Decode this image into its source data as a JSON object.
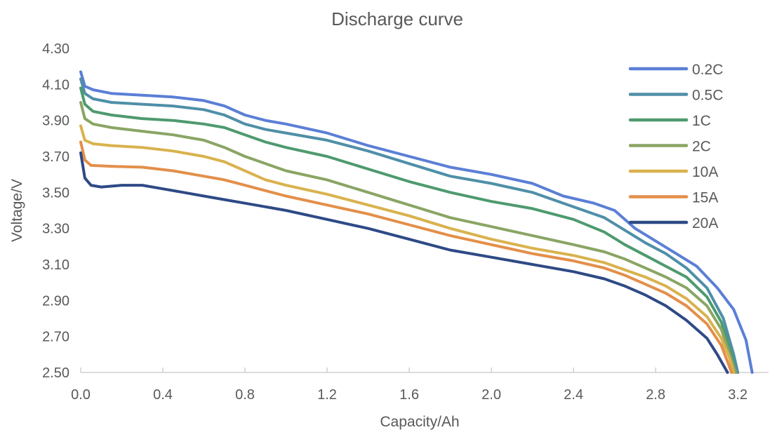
{
  "chart_data": {
    "type": "line",
    "title": "Discharge curve",
    "xlabel": "Capacity/Ah",
    "ylabel": "Voltage/V",
    "xlim": [
      0.0,
      3.35
    ],
    "ylim": [
      2.5,
      4.3
    ],
    "x_ticks": [
      "0.0",
      "0.4",
      "0.8",
      "1.2",
      "1.6",
      "2.0",
      "2.4",
      "2.8",
      "3.2"
    ],
    "y_ticks": [
      "2.50",
      "2.70",
      "2.90",
      "3.10",
      "3.30",
      "3.50",
      "3.70",
      "3.90",
      "4.10",
      "4.30"
    ],
    "grid": false,
    "legend_position": "top-right",
    "series": [
      {
        "name": "0.2C",
        "color": "#5B7FD6",
        "points": [
          [
            0.0,
            4.17
          ],
          [
            0.02,
            4.09
          ],
          [
            0.06,
            4.07
          ],
          [
            0.15,
            4.05
          ],
          [
            0.3,
            4.04
          ],
          [
            0.45,
            4.03
          ],
          [
            0.6,
            4.01
          ],
          [
            0.7,
            3.98
          ],
          [
            0.8,
            3.93
          ],
          [
            0.9,
            3.9
          ],
          [
            1.0,
            3.88
          ],
          [
            1.2,
            3.83
          ],
          [
            1.4,
            3.76
          ],
          [
            1.6,
            3.7
          ],
          [
            1.8,
            3.64
          ],
          [
            2.0,
            3.6
          ],
          [
            2.2,
            3.55
          ],
          [
            2.35,
            3.48
          ],
          [
            2.5,
            3.44
          ],
          [
            2.6,
            3.4
          ],
          [
            2.7,
            3.3
          ],
          [
            2.8,
            3.23
          ],
          [
            2.9,
            3.16
          ],
          [
            3.0,
            3.09
          ],
          [
            3.1,
            2.97
          ],
          [
            3.18,
            2.85
          ],
          [
            3.24,
            2.68
          ],
          [
            3.27,
            2.5
          ]
        ]
      },
      {
        "name": "0.5C",
        "color": "#4F8FA8",
        "points": [
          [
            0.0,
            4.13
          ],
          [
            0.02,
            4.05
          ],
          [
            0.06,
            4.02
          ],
          [
            0.15,
            4.0
          ],
          [
            0.3,
            3.99
          ],
          [
            0.45,
            3.98
          ],
          [
            0.6,
            3.96
          ],
          [
            0.7,
            3.93
          ],
          [
            0.8,
            3.88
          ],
          [
            0.9,
            3.85
          ],
          [
            1.0,
            3.83
          ],
          [
            1.2,
            3.79
          ],
          [
            1.4,
            3.73
          ],
          [
            1.6,
            3.66
          ],
          [
            1.8,
            3.59
          ],
          [
            2.0,
            3.55
          ],
          [
            2.2,
            3.5
          ],
          [
            2.4,
            3.42
          ],
          [
            2.55,
            3.36
          ],
          [
            2.65,
            3.29
          ],
          [
            2.75,
            3.22
          ],
          [
            2.85,
            3.16
          ],
          [
            2.95,
            3.08
          ],
          [
            3.05,
            2.97
          ],
          [
            3.13,
            2.8
          ],
          [
            3.18,
            2.6
          ],
          [
            3.2,
            2.5
          ]
        ]
      },
      {
        "name": "1C",
        "color": "#4E9A6E",
        "points": [
          [
            0.0,
            4.08
          ],
          [
            0.02,
            3.99
          ],
          [
            0.06,
            3.95
          ],
          [
            0.15,
            3.93
          ],
          [
            0.3,
            3.91
          ],
          [
            0.45,
            3.9
          ],
          [
            0.6,
            3.88
          ],
          [
            0.7,
            3.86
          ],
          [
            0.8,
            3.82
          ],
          [
            0.9,
            3.78
          ],
          [
            1.0,
            3.75
          ],
          [
            1.2,
            3.7
          ],
          [
            1.4,
            3.63
          ],
          [
            1.6,
            3.56
          ],
          [
            1.8,
            3.5
          ],
          [
            2.0,
            3.45
          ],
          [
            2.2,
            3.41
          ],
          [
            2.4,
            3.35
          ],
          [
            2.55,
            3.28
          ],
          [
            2.65,
            3.21
          ],
          [
            2.75,
            3.15
          ],
          [
            2.85,
            3.09
          ],
          [
            2.95,
            3.03
          ],
          [
            3.05,
            2.92
          ],
          [
            3.12,
            2.78
          ],
          [
            3.17,
            2.6
          ],
          [
            3.19,
            2.5
          ]
        ]
      },
      {
        "name": "2C",
        "color": "#8AA564",
        "points": [
          [
            0.0,
            4.0
          ],
          [
            0.02,
            3.91
          ],
          [
            0.06,
            3.88
          ],
          [
            0.15,
            3.86
          ],
          [
            0.3,
            3.84
          ],
          [
            0.45,
            3.82
          ],
          [
            0.6,
            3.79
          ],
          [
            0.7,
            3.75
          ],
          [
            0.8,
            3.7
          ],
          [
            0.9,
            3.66
          ],
          [
            1.0,
            3.62
          ],
          [
            1.2,
            3.57
          ],
          [
            1.4,
            3.5
          ],
          [
            1.6,
            3.43
          ],
          [
            1.8,
            3.36
          ],
          [
            2.0,
            3.31
          ],
          [
            2.2,
            3.26
          ],
          [
            2.4,
            3.21
          ],
          [
            2.55,
            3.17
          ],
          [
            2.65,
            3.13
          ],
          [
            2.75,
            3.08
          ],
          [
            2.85,
            3.03
          ],
          [
            2.95,
            2.97
          ],
          [
            3.05,
            2.87
          ],
          [
            3.12,
            2.74
          ],
          [
            3.16,
            2.6
          ],
          [
            3.19,
            2.5
          ]
        ]
      },
      {
        "name": "10A",
        "color": "#D9B24E",
        "points": [
          [
            0.0,
            3.87
          ],
          [
            0.02,
            3.79
          ],
          [
            0.06,
            3.77
          ],
          [
            0.15,
            3.76
          ],
          [
            0.3,
            3.75
          ],
          [
            0.45,
            3.73
          ],
          [
            0.6,
            3.7
          ],
          [
            0.7,
            3.67
          ],
          [
            0.8,
            3.62
          ],
          [
            0.9,
            3.57
          ],
          [
            1.0,
            3.54
          ],
          [
            1.2,
            3.49
          ],
          [
            1.4,
            3.43
          ],
          [
            1.6,
            3.37
          ],
          [
            1.8,
            3.3
          ],
          [
            2.0,
            3.24
          ],
          [
            2.2,
            3.19
          ],
          [
            2.4,
            3.15
          ],
          [
            2.55,
            3.11
          ],
          [
            2.65,
            3.07
          ],
          [
            2.75,
            3.03
          ],
          [
            2.85,
            2.98
          ],
          [
            2.95,
            2.91
          ],
          [
            3.05,
            2.81
          ],
          [
            3.12,
            2.69
          ],
          [
            3.16,
            2.58
          ],
          [
            3.18,
            2.5
          ]
        ]
      },
      {
        "name": "15A",
        "color": "#E38F4A",
        "points": [
          [
            0.0,
            3.78
          ],
          [
            0.02,
            3.68
          ],
          [
            0.05,
            3.65
          ],
          [
            0.15,
            3.645
          ],
          [
            0.3,
            3.64
          ],
          [
            0.45,
            3.62
          ],
          [
            0.6,
            3.59
          ],
          [
            0.7,
            3.57
          ],
          [
            0.8,
            3.54
          ],
          [
            0.9,
            3.51
          ],
          [
            1.0,
            3.48
          ],
          [
            1.2,
            3.43
          ],
          [
            1.4,
            3.38
          ],
          [
            1.6,
            3.32
          ],
          [
            1.8,
            3.26
          ],
          [
            2.0,
            3.21
          ],
          [
            2.2,
            3.16
          ],
          [
            2.4,
            3.12
          ],
          [
            2.55,
            3.08
          ],
          [
            2.65,
            3.04
          ],
          [
            2.75,
            2.99
          ],
          [
            2.85,
            2.94
          ],
          [
            2.95,
            2.87
          ],
          [
            3.05,
            2.77
          ],
          [
            3.12,
            2.65
          ],
          [
            3.15,
            2.56
          ],
          [
            3.17,
            2.5
          ]
        ]
      },
      {
        "name": "20A",
        "color": "#2E4A86",
        "points": [
          [
            0.0,
            3.72
          ],
          [
            0.02,
            3.58
          ],
          [
            0.05,
            3.54
          ],
          [
            0.1,
            3.53
          ],
          [
            0.2,
            3.54
          ],
          [
            0.3,
            3.54
          ],
          [
            0.4,
            3.52
          ],
          [
            0.5,
            3.5
          ],
          [
            0.6,
            3.48
          ],
          [
            0.7,
            3.46
          ],
          [
            0.8,
            3.44
          ],
          [
            1.0,
            3.4
          ],
          [
            1.2,
            3.35
          ],
          [
            1.4,
            3.3
          ],
          [
            1.6,
            3.24
          ],
          [
            1.8,
            3.18
          ],
          [
            2.0,
            3.14
          ],
          [
            2.2,
            3.1
          ],
          [
            2.4,
            3.06
          ],
          [
            2.55,
            3.02
          ],
          [
            2.65,
            2.98
          ],
          [
            2.75,
            2.93
          ],
          [
            2.85,
            2.87
          ],
          [
            2.95,
            2.79
          ],
          [
            3.05,
            2.69
          ],
          [
            3.1,
            2.6
          ],
          [
            3.14,
            2.52
          ],
          [
            3.15,
            2.5
          ]
        ]
      }
    ]
  }
}
